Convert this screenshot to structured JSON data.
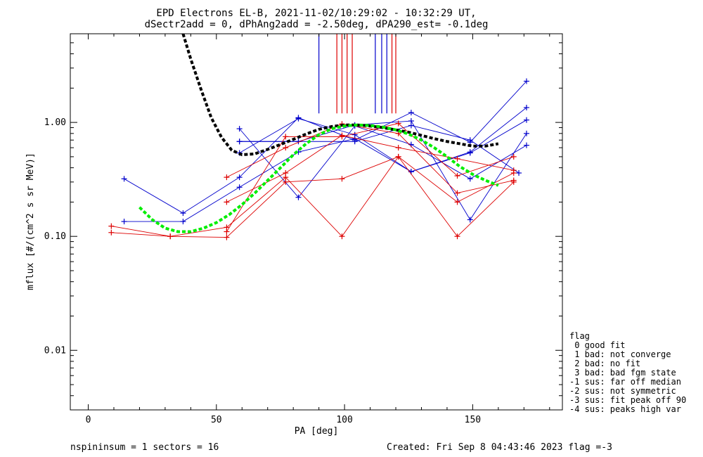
{
  "chart_data": {
    "type": "scatter",
    "title_line1": "EPD Electrons EL-B, 2021-11-02/10:29:02 - 10:32:29 UT,",
    "title_line2": "dSectr2add = 0, dPhAng2add = -2.50deg, dPA290_est=  -0.1deg",
    "xlabel": "PA [deg]",
    "ylabel": "mflux [#/(cm^2 s sr MeV)]",
    "xlim": [
      -7,
      185
    ],
    "ylim": [
      0.003,
      6.0
    ],
    "yscale": "log",
    "xticks": [
      0,
      50,
      100,
      150
    ],
    "xtick_labels": [
      "0",
      "50",
      "100",
      "150"
    ],
    "yticks": [
      0.01,
      0.1,
      1.0
    ],
    "ytick_labels": [
      "0.01",
      "0.10",
      "1.00"
    ],
    "colors": {
      "blue": "#0000cc",
      "red": "#dd0000",
      "black": "#000000",
      "green": "#00ee00"
    },
    "series": [
      {
        "color": "blue",
        "x": [
          14,
          37,
          59,
          82,
          104,
          126,
          149,
          171
        ],
        "y": [
          0.32,
          0.16,
          0.33,
          1.1,
          0.7,
          1.22,
          0.67,
          2.3
        ]
      },
      {
        "color": "blue",
        "x": [
          14,
          37,
          59,
          82,
          104,
          126,
          149,
          171
        ],
        "y": [
          0.135,
          0.135,
          0.27,
          0.55,
          0.72,
          0.37,
          0.55,
          1.35
        ]
      },
      {
        "color": "blue",
        "x": [
          59,
          82,
          104,
          126,
          149,
          171
        ],
        "y": [
          0.88,
          0.22,
          0.93,
          0.64,
          0.32,
          0.63
        ]
      },
      {
        "color": "blue",
        "x": [
          59,
          82,
          104,
          126,
          149,
          171
        ],
        "y": [
          0.68,
          0.68,
          0.95,
          1.03,
          0.14,
          0.8
        ]
      },
      {
        "color": "blue",
        "x": [
          59,
          82,
          104,
          126,
          149,
          171
        ],
        "y": [
          0.54,
          1.08,
          0.78,
          0.37,
          0.54,
          1.05
        ]
      },
      {
        "color": "blue",
        "x": [
          59,
          104,
          126,
          149,
          168
        ],
        "y": [
          0.68,
          0.68,
          0.94,
          0.7,
          0.36
        ]
      },
      {
        "color": "red",
        "x": [
          9,
          32,
          54,
          77,
          99,
          121,
          144,
          166
        ],
        "y": [
          0.108,
          0.1,
          0.098,
          0.3,
          0.32,
          0.5,
          0.1,
          0.3
        ]
      },
      {
        "color": "red",
        "x": [
          9,
          32,
          54,
          77,
          99,
          121,
          144,
          166
        ],
        "y": [
          0.123,
          0.1,
          0.12,
          0.33,
          0.1,
          0.5,
          0.2,
          0.36
        ]
      },
      {
        "color": "red",
        "x": [
          54,
          77,
          99,
          121,
          144,
          166
        ],
        "y": [
          0.33,
          0.6,
          0.97,
          0.8,
          0.24,
          0.31
        ]
      },
      {
        "color": "red",
        "x": [
          54,
          77,
          99,
          121,
          144,
          166
        ],
        "y": [
          0.11,
          0.75,
          0.75,
          0.98,
          0.34,
          0.5
        ]
      },
      {
        "color": "red",
        "x": [
          54,
          77,
          99,
          121,
          144,
          166
        ],
        "y": [
          0.2,
          0.36,
          0.77,
          0.6,
          0.48,
          0.38
        ]
      }
    ],
    "fits": [
      {
        "color": "black",
        "x": [
          37,
          40,
          44,
          48,
          52,
          56,
          60,
          65,
          70,
          75,
          80,
          85,
          90,
          95,
          100,
          105,
          110,
          115,
          120,
          125,
          130,
          135,
          140,
          145,
          150,
          155,
          160
        ],
        "y": [
          6.0,
          3.6,
          1.95,
          1.1,
          0.74,
          0.57,
          0.52,
          0.53,
          0.58,
          0.64,
          0.71,
          0.79,
          0.87,
          0.92,
          0.95,
          0.95,
          0.93,
          0.9,
          0.86,
          0.82,
          0.77,
          0.72,
          0.68,
          0.65,
          0.62,
          0.62,
          0.65
        ]
      },
      {
        "color": "green",
        "x": [
          20,
          25,
          30,
          35,
          40,
          45,
          50,
          55,
          60,
          65,
          70,
          75,
          80,
          85,
          90,
          95,
          100,
          105,
          110,
          115,
          120,
          125,
          130,
          135,
          140,
          145,
          150,
          155,
          160
        ],
        "y": [
          0.18,
          0.14,
          0.118,
          0.11,
          0.11,
          0.118,
          0.132,
          0.155,
          0.19,
          0.24,
          0.31,
          0.4,
          0.52,
          0.65,
          0.78,
          0.88,
          0.93,
          0.95,
          0.94,
          0.91,
          0.86,
          0.79,
          0.7,
          0.6,
          0.5,
          0.41,
          0.35,
          0.31,
          0.28
        ]
      }
    ],
    "vlines": [
      {
        "color": "blue",
        "x": 90,
        "ylow": 1.2
      },
      {
        "color": "red",
        "x": 97,
        "ylow": 1.2
      },
      {
        "color": "red",
        "x": 99,
        "ylow": 1.2
      },
      {
        "color": "red",
        "x": 101,
        "ylow": 1.2
      },
      {
        "color": "red",
        "x": 103,
        "ylow": 1.2
      },
      {
        "color": "blue",
        "x": 112,
        "ylow": 1.2
      },
      {
        "color": "blue",
        "x": 114.5,
        "ylow": 1.2
      },
      {
        "color": "blue",
        "x": 116.5,
        "ylow": 1.2
      },
      {
        "color": "red",
        "x": 118.5,
        "ylow": 1.2
      },
      {
        "color": "red",
        "x": 120,
        "ylow": 1.2
      }
    ],
    "legend_title": "flag",
    "legend": [
      " 0 good fit",
      " 1 bad: not converge",
      " 2 bad: no fit",
      " 3 bad: bad fgm state",
      "-1 sus: far off median",
      "-2 sus: not symmetric",
      "-3 sus: fit peak off 90",
      "-4 sus: peaks high var"
    ],
    "legend_placement": "right"
  },
  "footer": {
    "left": "nspininsum =  1  sectors = 16",
    "right": "Created: Fri Sep  8 04:43:46 2023   flag =-3"
  }
}
